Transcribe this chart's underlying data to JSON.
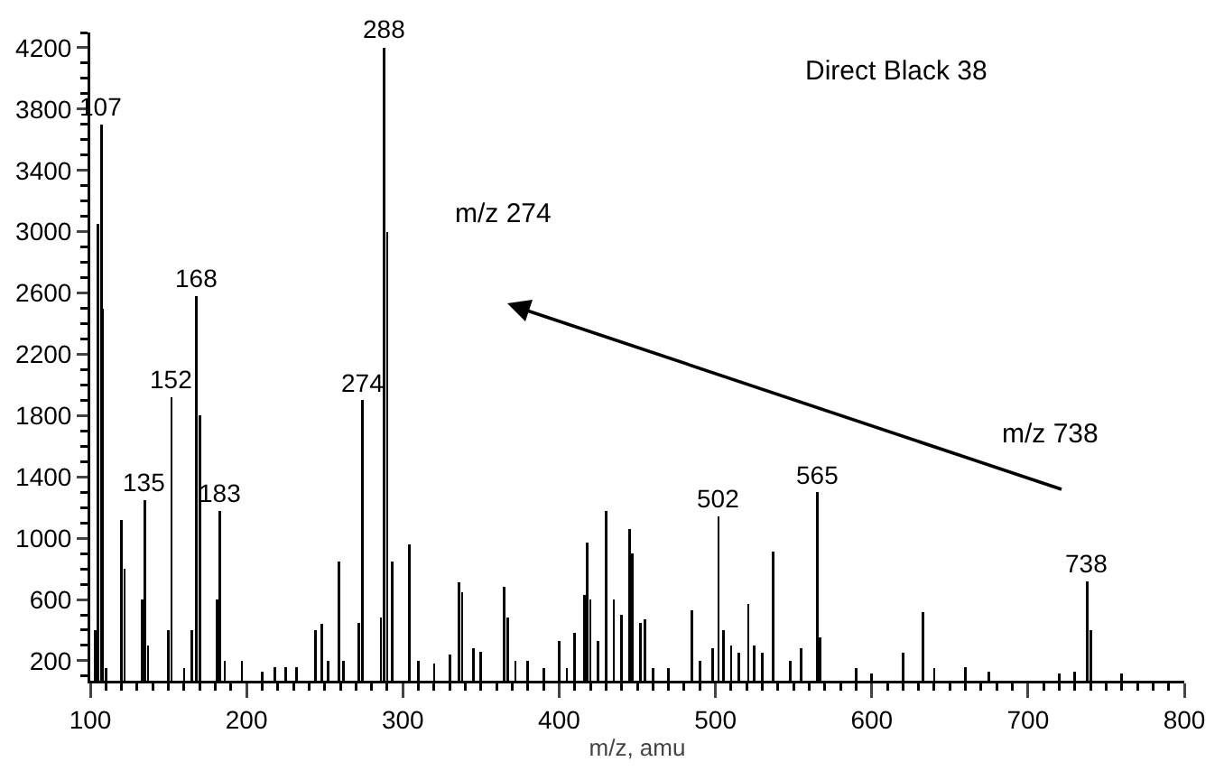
{
  "chart_data": {
    "type": "bar",
    "xlabel": "m/z, amu",
    "x": [
      103,
      105,
      107,
      108,
      110,
      120,
      122,
      133,
      135,
      137,
      150,
      152,
      160,
      165,
      168,
      170,
      181,
      183,
      186,
      197,
      210,
      218,
      225,
      232,
      244,
      248,
      252,
      259,
      262,
      272,
      274,
      286,
      288,
      290,
      293,
      304,
      310,
      320,
      330,
      336,
      338,
      345,
      350,
      365,
      367,
      372,
      380,
      390,
      400,
      405,
      410,
      416,
      418,
      420,
      425,
      430,
      435,
      440,
      445,
      447,
      452,
      455,
      460,
      470,
      485,
      490,
      498,
      502,
      505,
      510,
      515,
      521,
      525,
      530,
      537,
      548,
      555,
      565,
      567,
      590,
      600,
      620,
      633,
      640,
      660,
      675,
      720,
      730,
      738,
      740,
      760
    ],
    "values": [
      400,
      3050,
      3700,
      2500,
      150,
      1120,
      800,
      600,
      1250,
      300,
      400,
      1920,
      150,
      400,
      2580,
      1800,
      600,
      1180,
      200,
      200,
      130,
      160,
      160,
      160,
      400,
      440,
      200,
      850,
      200,
      450,
      1900,
      480,
      4200,
      3000,
      850,
      960,
      200,
      180,
      240,
      710,
      650,
      280,
      260,
      680,
      480,
      200,
      200,
      150,
      330,
      150,
      380,
      630,
      970,
      600,
      330,
      1180,
      600,
      500,
      1060,
      900,
      450,
      470,
      150,
      150,
      530,
      200,
      280,
      1140,
      400,
      300,
      250,
      570,
      300,
      250,
      910,
      200,
      280,
      1300,
      350,
      150,
      120,
      250,
      520,
      150,
      160,
      130,
      120,
      130,
      720,
      400,
      120
    ],
    "color": "#000000",
    "xlim": [
      100,
      800
    ],
    "xticks": [
      100,
      200,
      300,
      400,
      500,
      600,
      700,
      800
    ],
    "ylim": [
      70,
      4300
    ],
    "yticks": [
      200,
      600,
      1000,
      1400,
      1800,
      2200,
      2600,
      3000,
      3400,
      3800,
      4200
    ],
    "grid": false,
    "legend": false,
    "annotations": [
      {
        "text": "107",
        "x": 107,
        "y": 3700
      },
      {
        "text": "135",
        "x": 135,
        "y": 1250
      },
      {
        "text": "152",
        "x": 152,
        "y": 1920
      },
      {
        "text": "168",
        "x": 168,
        "y": 2580
      },
      {
        "text": "183",
        "x": 183,
        "y": 1180
      },
      {
        "text": "274",
        "x": 274,
        "y": 1900
      },
      {
        "text": "288",
        "x": 288,
        "y": 4200
      },
      {
        "text": "502",
        "x": 502,
        "y": 1140
      },
      {
        "text": "565",
        "x": 565,
        "y": 1300
      },
      {
        "text": "738",
        "x": 738,
        "y": 720
      },
      "Direct Black 38",
      "m/z 274",
      "m/z 738"
    ]
  }
}
